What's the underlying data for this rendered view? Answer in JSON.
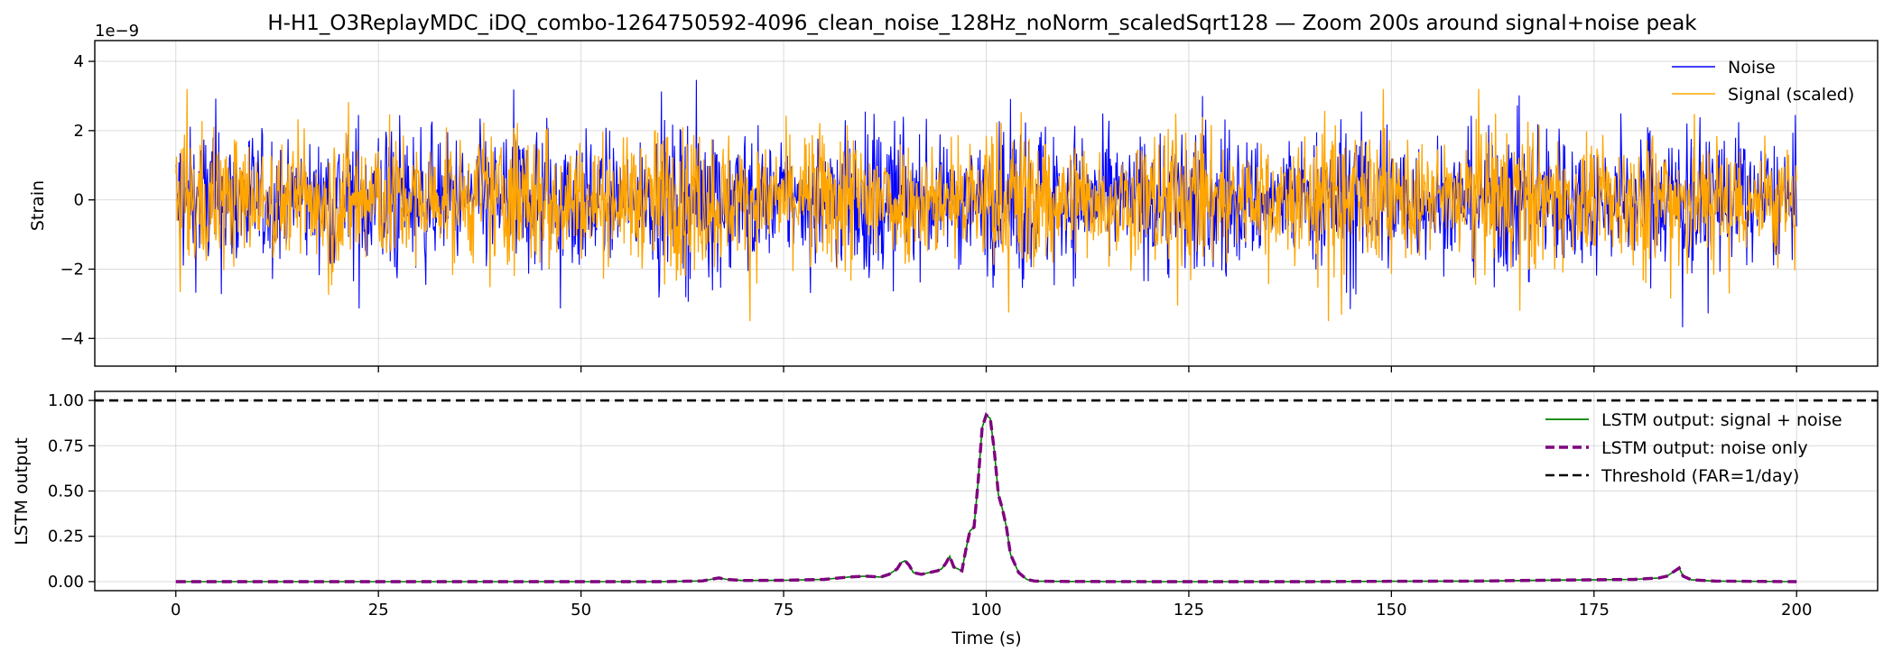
{
  "chart_data": [
    {
      "type": "line",
      "title": "H-H1_O3ReplayMDC_iDQ_combo-1264750592-4096_clean_noise_128Hz_noNorm_scaledSqrt128 — Zoom 200s around signal+noise peak",
      "ylabel": "Strain",
      "xlabel": "",
      "y_scale_label": "1e−9",
      "xlim": [
        -10,
        210
      ],
      "ylim": [
        -4.8,
        4.6
      ],
      "x_ticks": [
        0,
        25,
        50,
        75,
        100,
        125,
        150,
        175,
        200
      ],
      "y_ticks": [
        -4,
        -2,
        0,
        2,
        4
      ],
      "y_tick_labels": [
        "−4",
        "−2",
        "0",
        "2",
        "4"
      ],
      "grid": true,
      "legend_position": "top-right",
      "series": [
        {
          "name": "Noise",
          "color": "#0000ff",
          "x_range": [
            0,
            200
          ],
          "typical_amplitude": 1.6,
          "peak_values": [
            4.1,
            -4.4
          ],
          "unit_exponent": -9
        },
        {
          "name": "Signal (scaled)",
          "color": "#ffa500",
          "x_range": [
            0,
            200
          ],
          "typical_amplitude": 1.5,
          "peak_values": [
            3.2,
            -3.5
          ],
          "unit_exponent": -9
        }
      ]
    },
    {
      "type": "line",
      "title": "",
      "ylabel": "LSTM output",
      "xlabel": "Time (s)",
      "xlim": [
        -10,
        210
      ],
      "ylim": [
        -0.05,
        1.05
      ],
      "x_ticks": [
        0,
        25,
        50,
        75,
        100,
        125,
        150,
        175,
        200
      ],
      "x_tick_labels": [
        "0",
        "25",
        "50",
        "75",
        "100",
        "125",
        "150",
        "175",
        "200"
      ],
      "y_ticks": [
        0.0,
        0.25,
        0.5,
        0.75,
        1.0
      ],
      "y_tick_labels": [
        "0.00",
        "0.25",
        "0.50",
        "0.75",
        "1.00"
      ],
      "grid": true,
      "legend_position": "top-right",
      "series": [
        {
          "name": "LSTM output: signal + noise",
          "color": "#008000",
          "style": "solid",
          "x": [
            0,
            10,
            20,
            30,
            40,
            50,
            60,
            65,
            66,
            67,
            68,
            70,
            75,
            80,
            83,
            85,
            87,
            88,
            89,
            89.5,
            90,
            90.5,
            91,
            92,
            93,
            94,
            94.5,
            95,
            95.5,
            96,
            97,
            97.5,
            98,
            98.5,
            99,
            99.5,
            100,
            100.5,
            101,
            101.5,
            102,
            102.5,
            103,
            104,
            105,
            106,
            110,
            120,
            130,
            140,
            150,
            160,
            170,
            175,
            180,
            183,
            184,
            185,
            185.5,
            186,
            187,
            190,
            200
          ],
          "y": [
            0.0,
            0.0,
            0.0,
            0.0,
            0.0,
            0.0,
            0.0,
            0.004,
            0.012,
            0.02,
            0.012,
            0.006,
            0.007,
            0.012,
            0.025,
            0.03,
            0.025,
            0.04,
            0.07,
            0.105,
            0.115,
            0.09,
            0.05,
            0.04,
            0.05,
            0.06,
            0.07,
            0.1,
            0.14,
            0.08,
            0.06,
            0.18,
            0.28,
            0.3,
            0.55,
            0.85,
            0.92,
            0.9,
            0.72,
            0.48,
            0.4,
            0.3,
            0.15,
            0.05,
            0.012,
            0.003,
            0.001,
            0.0,
            0.0,
            0.0,
            0.002,
            0.003,
            0.008,
            0.01,
            0.012,
            0.02,
            0.03,
            0.06,
            0.075,
            0.03,
            0.01,
            0.003,
            0.0
          ]
        },
        {
          "name": "LSTM output: noise only",
          "color": "#800080",
          "style": "dashed",
          "x": [
            0,
            10,
            20,
            30,
            40,
            50,
            60,
            65,
            66,
            67,
            68,
            70,
            75,
            80,
            83,
            85,
            87,
            88,
            89,
            89.5,
            90,
            90.5,
            91,
            92,
            93,
            94,
            94.5,
            95,
            95.5,
            96,
            97,
            97.5,
            98,
            98.5,
            99,
            99.5,
            100,
            100.5,
            101,
            101.5,
            102,
            102.5,
            103,
            104,
            105,
            106,
            110,
            120,
            130,
            140,
            150,
            160,
            170,
            175,
            180,
            183,
            184,
            185,
            185.5,
            186,
            187,
            190,
            200
          ],
          "y": [
            0.0,
            0.0,
            0.0,
            0.0,
            0.0,
            0.0,
            0.0,
            0.004,
            0.012,
            0.02,
            0.012,
            0.006,
            0.007,
            0.012,
            0.025,
            0.03,
            0.025,
            0.04,
            0.07,
            0.105,
            0.115,
            0.09,
            0.05,
            0.04,
            0.05,
            0.06,
            0.07,
            0.1,
            0.14,
            0.08,
            0.06,
            0.18,
            0.28,
            0.3,
            0.55,
            0.85,
            0.92,
            0.9,
            0.72,
            0.48,
            0.4,
            0.3,
            0.15,
            0.05,
            0.012,
            0.003,
            0.001,
            0.0,
            0.0,
            0.0,
            0.002,
            0.003,
            0.008,
            0.01,
            0.012,
            0.02,
            0.03,
            0.06,
            0.075,
            0.03,
            0.01,
            0.003,
            0.0
          ]
        },
        {
          "name": "Threshold (FAR=1/day)",
          "color": "#000000",
          "style": "dashed",
          "y_constant": 1.0
        }
      ]
    }
  ]
}
